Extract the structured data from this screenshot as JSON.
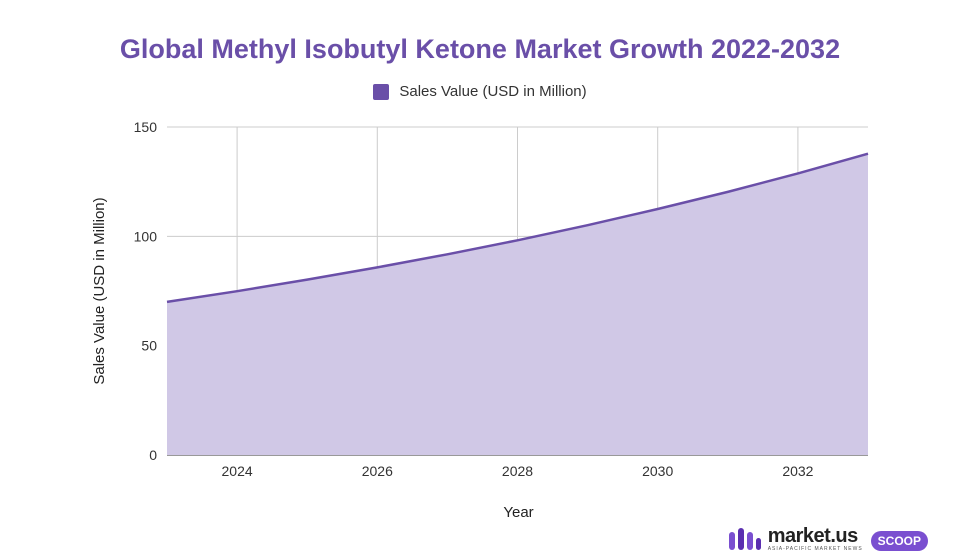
{
  "chart_data": {
    "type": "area",
    "title": "Global Methyl Isobutyl Ketone Market Growth 2022-2032",
    "xlabel": "Year",
    "ylabel": "Sales Value (USD in Million)",
    "series": [
      {
        "name": "Sales Value (USD in Million)",
        "x": [
          2023,
          2024,
          2025,
          2026,
          2027,
          2028,
          2029,
          2030,
          2031,
          2032,
          2033
        ],
        "values": [
          70.0,
          74.9,
          80.2,
          85.8,
          91.8,
          98.2,
          105.1,
          112.5,
          120.3,
          128.8,
          137.8
        ]
      }
    ],
    "xlim": [
      2023,
      2033
    ],
    "ylim": [
      0,
      150
    ],
    "x_ticks": [
      2024,
      2026,
      2028,
      2030,
      2032
    ],
    "y_ticks": [
      0,
      50,
      100,
      150
    ],
    "legend_position": "top-center",
    "grid": true,
    "colors": {
      "line": "#6a4fa8",
      "fill": "#d0c8e6",
      "grid": "#cccccc"
    }
  },
  "brand": {
    "name": "market.us",
    "tagline": "ASIA-PACIFIC MARKET NEWS",
    "badge": "SCOOP",
    "logo_icon": "market-us-logo-icon"
  }
}
